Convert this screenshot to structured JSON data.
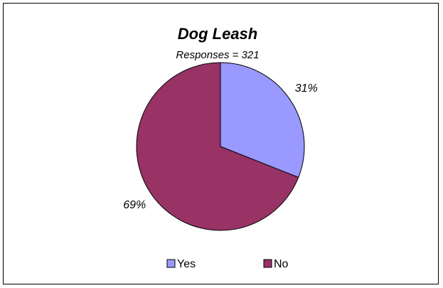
{
  "chart_data": {
    "type": "pie",
    "title": "Dog Leash",
    "subtitle": "Responses = 321",
    "categories": [
      "Yes",
      "No"
    ],
    "values": [
      31,
      69
    ],
    "labels": [
      "31%",
      "69%"
    ],
    "colors": [
      "#9999ff",
      "#993366"
    ],
    "legend": {
      "placement": "bottom",
      "items": [
        {
          "label": "Yes",
          "color": "#9999ff"
        },
        {
          "label": "No",
          "color": "#993366"
        }
      ]
    }
  }
}
